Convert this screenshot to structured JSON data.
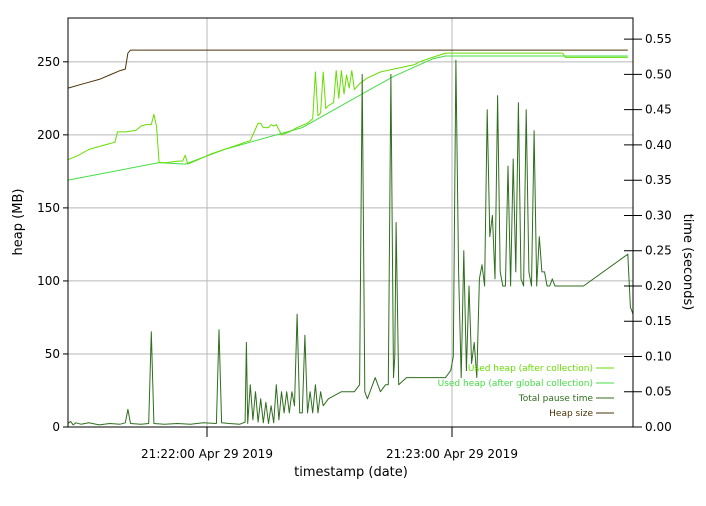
{
  "chart_data": {
    "type": "line",
    "xlabel": "timestamp (date)",
    "ylabel_left": "heap (MB)",
    "ylabel_right": "time (seconds)",
    "x_ticks": [
      "21:22:00 Apr 29 2019",
      "21:23:00 Apr 29 2019"
    ],
    "x_range": [
      "21:21:25",
      "21:23:44"
    ],
    "y_left_range": [
      0,
      280
    ],
    "y_left_ticks": [
      0,
      50,
      100,
      150,
      200,
      250
    ],
    "y_right_range": [
      0,
      0.58
    ],
    "y_right_ticks": [
      "0.00",
      "0.05",
      "0.10",
      "0.15",
      "0.20",
      "0.25",
      "0.30",
      "0.35",
      "0.40",
      "0.45",
      "0.50",
      "0.55"
    ],
    "grid": true,
    "legend_position": "bottom-right",
    "series": [
      {
        "name": "Used heap (after collection)",
        "axis": "left",
        "color": "#66dd00",
        "points": [
          [
            0,
            183
          ],
          [
            4,
            186
          ],
          [
            8,
            190
          ],
          [
            12,
            192
          ],
          [
            16,
            194
          ],
          [
            18,
            195
          ],
          [
            19,
            202
          ],
          [
            22,
            202
          ],
          [
            26,
            203
          ],
          [
            28,
            206
          ],
          [
            30,
            207
          ],
          [
            32,
            207
          ],
          [
            33,
            214
          ],
          [
            34,
            206
          ],
          [
            35,
            181
          ],
          [
            38,
            181
          ],
          [
            42,
            182
          ],
          [
            44,
            182
          ],
          [
            45,
            186
          ],
          [
            46,
            180
          ],
          [
            50,
            183
          ],
          [
            55,
            187
          ],
          [
            60,
            190
          ],
          [
            65,
            193
          ],
          [
            68,
            195
          ],
          [
            70,
            196
          ],
          [
            73,
            208
          ],
          [
            74,
            208
          ],
          [
            75,
            205
          ],
          [
            77,
            205
          ],
          [
            78,
            207
          ],
          [
            79,
            206
          ],
          [
            80,
            207
          ],
          [
            82,
            200
          ],
          [
            85,
            202
          ],
          [
            88,
            205
          ],
          [
            92,
            208
          ],
          [
            94,
            211
          ],
          [
            95,
            243
          ],
          [
            96,
            213
          ],
          [
            97,
            215
          ],
          [
            98,
            243
          ],
          [
            99,
            218
          ],
          [
            100,
            220
          ],
          [
            102,
            222
          ],
          [
            103,
            244
          ],
          [
            104,
            225
          ],
          [
            105,
            244
          ],
          [
            106,
            228
          ],
          [
            107,
            241
          ],
          [
            108,
            232
          ],
          [
            109,
            244
          ],
          [
            110,
            231
          ],
          [
            112,
            235
          ],
          [
            115,
            239
          ],
          [
            120,
            243
          ],
          [
            125,
            245
          ],
          [
            130,
            247
          ],
          [
            133,
            248
          ],
          [
            135,
            250
          ],
          [
            140,
            253
          ],
          [
            145,
            256
          ],
          [
            190,
            256
          ],
          [
            191,
            253
          ],
          [
            200,
            253
          ],
          [
            215,
            253
          ]
        ]
      },
      {
        "name": "Used heap (after global collection)",
        "axis": "left",
        "color": "#44dd44",
        "points": [
          [
            0,
            169
          ],
          [
            35,
            181
          ],
          [
            45,
            180
          ],
          [
            60,
            190
          ],
          [
            90,
            205
          ],
          [
            110,
            225
          ],
          [
            125,
            240
          ],
          [
            140,
            252
          ],
          [
            145,
            254
          ],
          [
            215,
            254
          ]
        ]
      },
      {
        "name": "Total pause time",
        "axis": "right",
        "color": "#2f6e1e",
        "points": [
          [
            0,
            0.005
          ],
          [
            1,
            0.008
          ],
          [
            2,
            0.003
          ],
          [
            3,
            0.006
          ],
          [
            5,
            0.004
          ],
          [
            8,
            0.006
          ],
          [
            12,
            0.003
          ],
          [
            16,
            0.005
          ],
          [
            20,
            0.004
          ],
          [
            22,
            0.006
          ],
          [
            23,
            0.025
          ],
          [
            24,
            0.005
          ],
          [
            28,
            0.004
          ],
          [
            31,
            0.005
          ],
          [
            32,
            0.135
          ],
          [
            33,
            0.005
          ],
          [
            37,
            0.004
          ],
          [
            42,
            0.005
          ],
          [
            47,
            0.004
          ],
          [
            52,
            0.006
          ],
          [
            57,
            0.005
          ],
          [
            58,
            0.138
          ],
          [
            59,
            0.006
          ],
          [
            62,
            0.005
          ],
          [
            66,
            0.004
          ],
          [
            68,
            0.007
          ],
          [
            68.5,
            0.12
          ],
          [
            69,
            0.005
          ],
          [
            70,
            0.06
          ],
          [
            71,
            0.01
          ],
          [
            72,
            0.05
          ],
          [
            73,
            0.007
          ],
          [
            74,
            0.04
          ],
          [
            75,
            0.006
          ],
          [
            76,
            0.035
          ],
          [
            77,
            0.005
          ],
          [
            78,
            0.03
          ],
          [
            79,
            0.006
          ],
          [
            80,
            0.06
          ],
          [
            81,
            0.01
          ],
          [
            82,
            0.05
          ],
          [
            83,
            0.02
          ],
          [
            84,
            0.05
          ],
          [
            85,
            0.02
          ],
          [
            86,
            0.05
          ],
          [
            87,
            0.03
          ],
          [
            88,
            0.16
          ],
          [
            89,
            0.02
          ],
          [
            90,
            0.02
          ],
          [
            91,
            0.13
          ],
          [
            92,
            0.02
          ],
          [
            93,
            0.05
          ],
          [
            94,
            0.02
          ],
          [
            95,
            0.06
          ],
          [
            96,
            0.02
          ],
          [
            97,
            0.05
          ],
          [
            98,
            0.03
          ],
          [
            100,
            0.04
          ],
          [
            105,
            0.05
          ],
          [
            110,
            0.05
          ],
          [
            112,
            0.06
          ],
          [
            113,
            0.5
          ],
          [
            114,
            0.05
          ],
          [
            115,
            0.04
          ],
          [
            118,
            0.07
          ],
          [
            120,
            0.05
          ],
          [
            122,
            0.06
          ],
          [
            123,
            0.06
          ],
          [
            124,
            0.5
          ],
          [
            125,
            0.07
          ],
          [
            125.5,
            0.1
          ],
          [
            126,
            0.29
          ],
          [
            127,
            0.06
          ],
          [
            130,
            0.07
          ],
          [
            145,
            0.07
          ],
          [
            147,
            0.08
          ],
          [
            148,
            0.1
          ],
          [
            149,
            0.52
          ],
          [
            150,
            0.22
          ],
          [
            151,
            0.07
          ],
          [
            152,
            0.25
          ],
          [
            153,
            0.08
          ],
          [
            154,
            0.2
          ],
          [
            155,
            0.09
          ],
          [
            156,
            0.12
          ],
          [
            157,
            0.07
          ],
          [
            158,
            0.21
          ],
          [
            159,
            0.23
          ],
          [
            160,
            0.2
          ],
          [
            161,
            0.45
          ],
          [
            162,
            0.27
          ],
          [
            163,
            0.3
          ],
          [
            164,
            0.21
          ],
          [
            165,
            0.47
          ],
          [
            166,
            0.22
          ],
          [
            167,
            0.2
          ],
          [
            168,
            0.2
          ],
          [
            169,
            0.37
          ],
          [
            170,
            0.2
          ],
          [
            171,
            0.38
          ],
          [
            172,
            0.22
          ],
          [
            173,
            0.46
          ],
          [
            174,
            0.21
          ],
          [
            175,
            0.2
          ],
          [
            176,
            0.45
          ],
          [
            177,
            0.22
          ],
          [
            178,
            0.2
          ],
          [
            179,
            0.42
          ],
          [
            180,
            0.2
          ],
          [
            181,
            0.27
          ],
          [
            182,
            0.22
          ],
          [
            183,
            0.22
          ],
          [
            184,
            0.2
          ],
          [
            185,
            0.2
          ],
          [
            186,
            0.21
          ],
          [
            187,
            0.2
          ],
          [
            190,
            0.2
          ],
          [
            198,
            0.2
          ],
          [
            215,
            0.245
          ],
          [
            216,
            0.17
          ],
          [
            217,
            0.16
          ]
        ]
      },
      {
        "name": "Heap size",
        "axis": "left",
        "color": "#4a3408",
        "points": [
          [
            0,
            232
          ],
          [
            6,
            235
          ],
          [
            12,
            238
          ],
          [
            16,
            241
          ],
          [
            20,
            244
          ],
          [
            22,
            245
          ],
          [
            23,
            256
          ],
          [
            24,
            258
          ],
          [
            215,
            258
          ]
        ]
      }
    ]
  },
  "colors": {
    "used_heap": "#66dd00",
    "used_heap_global": "#44dd44",
    "pause_time": "#2f6e1e",
    "heap_size": "#4a3408",
    "grid": "#b8b8b8"
  }
}
